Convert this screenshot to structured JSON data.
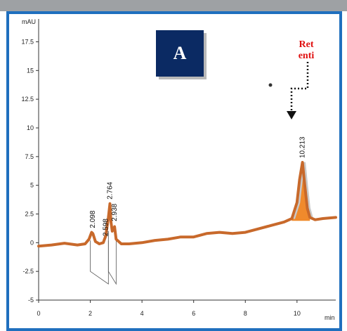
{
  "figure": {
    "panel_label": "A",
    "annotation": [
      "Ret",
      "enti"
    ],
    "colors": {
      "frame": "#1f6fbe",
      "trace": "#c8692b",
      "peak_fill": "#f08a2c",
      "panel_box": "#0b2a63",
      "annotation": "#e01010",
      "top_bar": "#9ea1a4"
    }
  },
  "chart_data": {
    "type": "line",
    "title": "",
    "ylabel": "mAU",
    "xlabel": "min",
    "xlim": [
      0,
      11.5
    ],
    "ylim": [
      -5,
      19
    ],
    "yticks": [
      "-5",
      "-2.5",
      "0",
      "2.5",
      "5",
      "7.5",
      "10",
      "12.5",
      "15",
      "17.5"
    ],
    "ytick_values": [
      -5,
      -2.5,
      0,
      2.5,
      5,
      7.5,
      10,
      12.5,
      15,
      17.5
    ],
    "xticks": [
      "0",
      "2",
      "4",
      "6",
      "8",
      "10"
    ],
    "xtick_values": [
      0,
      2,
      4,
      6,
      8,
      10
    ],
    "grid": false,
    "peak_labels": [
      {
        "label": "2.098",
        "x": 2.098,
        "y": 0.9
      },
      {
        "label": "2.598",
        "x": 2.598,
        "y": 0.2
      },
      {
        "label": "2.764",
        "x": 2.764,
        "y": 3.4
      },
      {
        "label": "2.938",
        "x": 2.938,
        "y": 1.5
      },
      {
        "label": "10.213",
        "x": 10.213,
        "y": 7.0
      }
    ],
    "series": [
      {
        "x": [
          0,
          0.5,
          1,
          1.5,
          1.8,
          1.95,
          2.05,
          2.1,
          2.2,
          2.35,
          2.5,
          2.6,
          2.7,
          2.76,
          2.8,
          2.85,
          2.9,
          2.94,
          3.0,
          3.2,
          3.5,
          4,
          4.5,
          5,
          5.5,
          6,
          6.5,
          7,
          7.5,
          8,
          8.5,
          9,
          9.5,
          9.8,
          10.0,
          10.1,
          10.21,
          10.3,
          10.4,
          10.5,
          10.7,
          11,
          11.5
        ],
        "y": [
          -0.3,
          -0.2,
          -0.05,
          -0.2,
          -0.1,
          0.3,
          0.9,
          0.8,
          0.1,
          -0.1,
          0.0,
          0.6,
          2.2,
          3.4,
          1.8,
          1.0,
          1.2,
          1.4,
          0.3,
          -0.1,
          -0.1,
          0.0,
          0.2,
          0.3,
          0.5,
          0.5,
          0.8,
          0.9,
          0.8,
          0.9,
          1.2,
          1.5,
          1.8,
          2.1,
          3.5,
          5.5,
          7.0,
          5.0,
          3.0,
          2.2,
          2.0,
          2.1,
          2.2
        ]
      }
    ]
  }
}
